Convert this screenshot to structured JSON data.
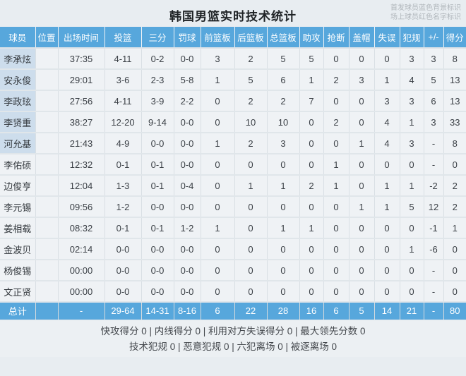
{
  "title": "韩国男篮实时技术统计",
  "legend": {
    "line1": "首发球员蓝色背景标识",
    "line2": "场上球员红色名字标识"
  },
  "colors": {
    "accent_blue": "#57a7dc",
    "starter_bg": "#cdddec"
  },
  "table": {
    "columns": [
      "球员",
      "位置",
      "出场时间",
      "投篮",
      "三分",
      "罚球",
      "前篮板",
      "后篮板",
      "总篮板",
      "助攻",
      "抢断",
      "盖帽",
      "失误",
      "犯规",
      "+/-",
      "得分"
    ],
    "rows": [
      {
        "player": "李承炫",
        "starter": true,
        "stats": [
          "",
          "37:35",
          "4-11",
          "0-2",
          "0-0",
          "3",
          "2",
          "5",
          "5",
          "0",
          "0",
          "0",
          "3",
          "3",
          "8"
        ]
      },
      {
        "player": "安永俊",
        "starter": true,
        "stats": [
          "",
          "29:01",
          "3-6",
          "2-3",
          "5-8",
          "1",
          "5",
          "6",
          "1",
          "2",
          "3",
          "1",
          "4",
          "5",
          "13"
        ]
      },
      {
        "player": "李政玹",
        "starter": true,
        "stats": [
          "",
          "27:56",
          "4-11",
          "3-9",
          "2-2",
          "0",
          "2",
          "2",
          "7",
          "0",
          "0",
          "3",
          "3",
          "6",
          "13"
        ]
      },
      {
        "player": "李贤重",
        "starter": true,
        "stats": [
          "",
          "38:27",
          "12-20",
          "9-14",
          "0-0",
          "0",
          "10",
          "10",
          "0",
          "2",
          "0",
          "4",
          "1",
          "3",
          "33"
        ]
      },
      {
        "player": "河允基",
        "starter": true,
        "stats": [
          "",
          "21:43",
          "4-9",
          "0-0",
          "0-0",
          "1",
          "2",
          "3",
          "0",
          "0",
          "1",
          "4",
          "3",
          "-",
          "8"
        ]
      },
      {
        "player": "李佑硕",
        "starter": false,
        "stats": [
          "",
          "12:32",
          "0-1",
          "0-1",
          "0-0",
          "0",
          "0",
          "0",
          "0",
          "1",
          "0",
          "0",
          "0",
          "-",
          "0"
        ]
      },
      {
        "player": "边俊亨",
        "starter": false,
        "stats": [
          "",
          "12:04",
          "1-3",
          "0-1",
          "0-4",
          "0",
          "1",
          "1",
          "2",
          "1",
          "0",
          "1",
          "1",
          "-2",
          "2"
        ]
      },
      {
        "player": "李元锡",
        "starter": false,
        "stats": [
          "",
          "09:56",
          "1-2",
          "0-0",
          "0-0",
          "0",
          "0",
          "0",
          "0",
          "0",
          "1",
          "1",
          "5",
          "12",
          "2"
        ]
      },
      {
        "player": "姜相载",
        "starter": false,
        "stats": [
          "",
          "08:32",
          "0-1",
          "0-1",
          "1-2",
          "1",
          "0",
          "1",
          "1",
          "0",
          "0",
          "0",
          "0",
          "-1",
          "1"
        ]
      },
      {
        "player": "金波贝",
        "starter": false,
        "stats": [
          "",
          "02:14",
          "0-0",
          "0-0",
          "0-0",
          "0",
          "0",
          "0",
          "0",
          "0",
          "0",
          "0",
          "1",
          "-6",
          "0"
        ]
      },
      {
        "player": "杨俊锡",
        "starter": false,
        "stats": [
          "",
          "00:00",
          "0-0",
          "0-0",
          "0-0",
          "0",
          "0",
          "0",
          "0",
          "0",
          "0",
          "0",
          "0",
          "-",
          "0"
        ]
      },
      {
        "player": "文正贤",
        "starter": false,
        "stats": [
          "",
          "00:00",
          "0-0",
          "0-0",
          "0-0",
          "0",
          "0",
          "0",
          "0",
          "0",
          "0",
          "0",
          "0",
          "-",
          "0"
        ]
      }
    ],
    "total": {
      "label": "总计",
      "stats": [
        "",
        "-",
        "29-64",
        "14-31",
        "8-16",
        "6",
        "22",
        "28",
        "16",
        "6",
        "5",
        "14",
        "21",
        "-",
        "80"
      ]
    }
  },
  "footer": {
    "line1": "快攻得分 0 | 内线得分 0 | 利用对方失误得分 0 | 最大领先分数 0",
    "line2": "技术犯规 0 | 恶意犯规 0 | 六犯离场 0 | 被逐离场 0"
  }
}
